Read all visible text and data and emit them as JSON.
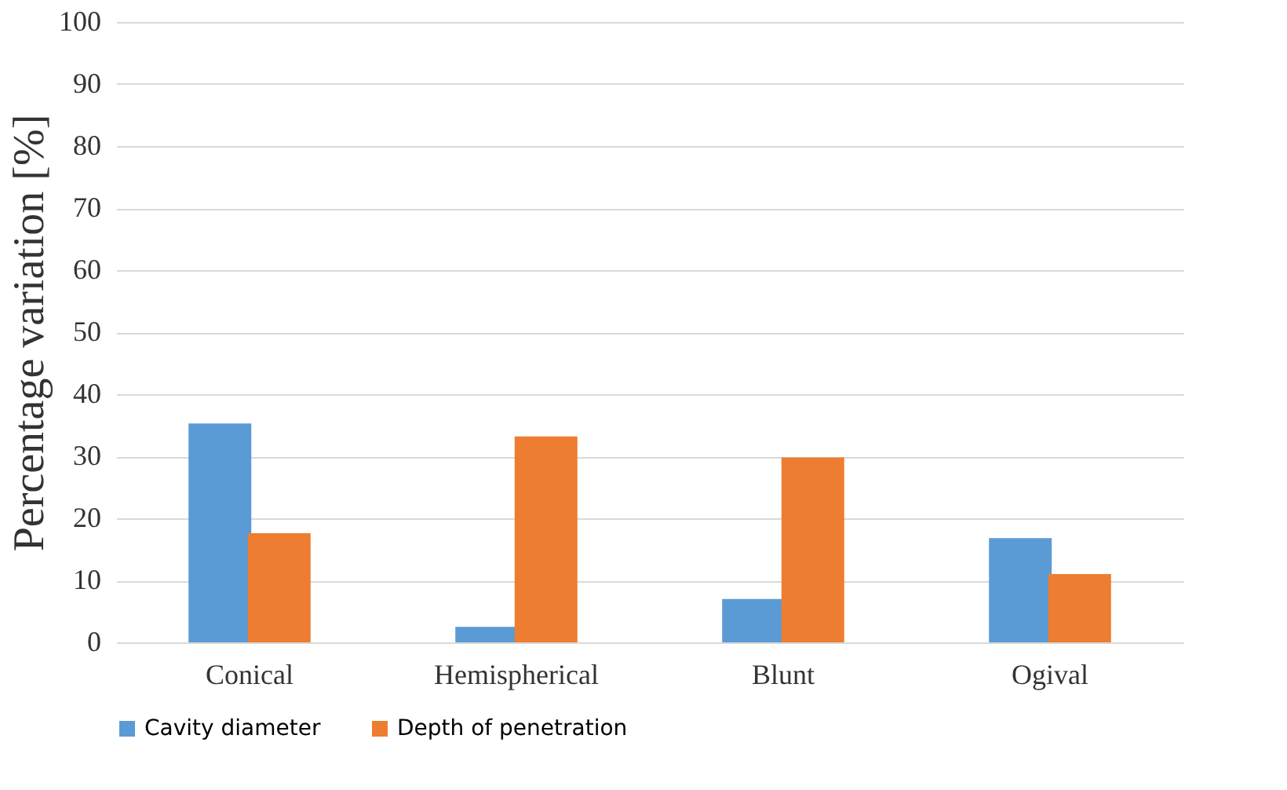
{
  "chart_data": {
    "type": "bar",
    "ylabel": "Percentage variation [%]",
    "categories": [
      "Conical",
      "Hemispherical",
      "Blunt",
      "Ogival"
    ],
    "series": [
      {
        "name": "Cavity diameter",
        "color": "#5b9bd5",
        "values": [
          35.3,
          2.5,
          7.0,
          16.8
        ]
      },
      {
        "name": "Depth of penetration",
        "color": "#ed7d31",
        "values": [
          17.6,
          33.2,
          29.8,
          11.0
        ]
      }
    ],
    "ylim": [
      0,
      100
    ],
    "yticks": [
      0,
      10,
      20,
      30,
      40,
      50,
      60,
      70,
      80,
      90,
      100
    ],
    "grid": "y",
    "legend": "bottom"
  }
}
